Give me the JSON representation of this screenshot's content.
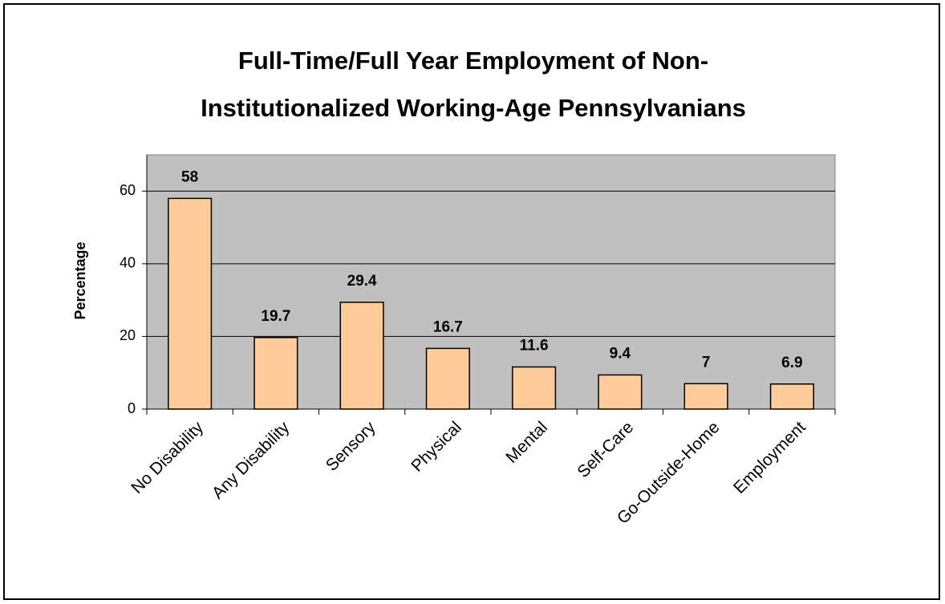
{
  "chart_data": {
    "type": "bar",
    "title": [
      "Full-Time/Full Year Employment of Non-",
      "Institutionalized Working-Age Pennsylvanians"
    ],
    "y_label": "Percentage",
    "categories": [
      "No Disability",
      "Any Disability",
      "Sensory",
      "Physical",
      "Mental",
      "Self-Care",
      "Go-Outside-Home",
      "Employment"
    ],
    "values": [
      58,
      19.7,
      29.4,
      16.7,
      11.6,
      9.4,
      7,
      6.9
    ],
    "color": "#FFCC99",
    "plot_background": "#C0C0C0",
    "ylim": [
      0,
      70
    ],
    "yticks": [
      0,
      20,
      40,
      60
    ],
    "grid": true
  }
}
